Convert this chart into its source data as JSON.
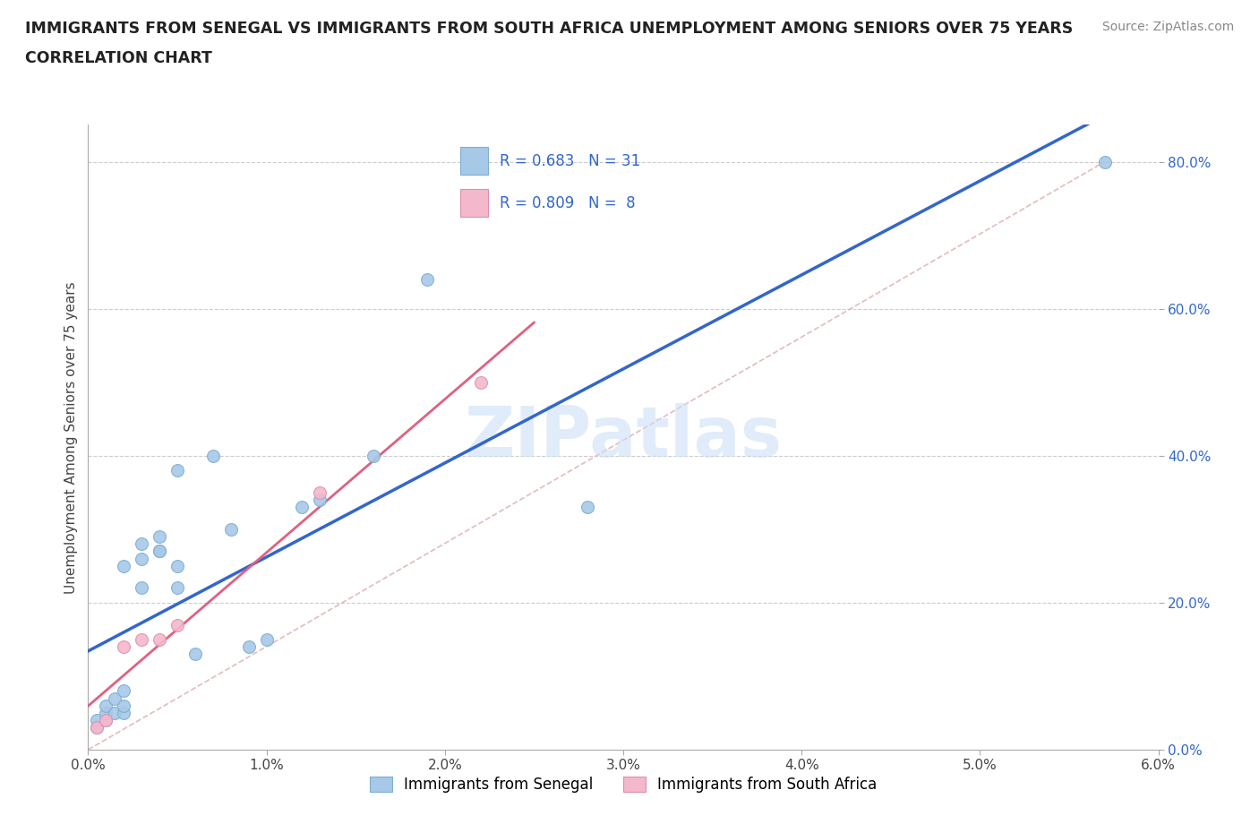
{
  "title_line1": "IMMIGRANTS FROM SENEGAL VS IMMIGRANTS FROM SOUTH AFRICA UNEMPLOYMENT AMONG SENIORS OVER 75 YEARS",
  "title_line2": "CORRELATION CHART",
  "source": "Source: ZipAtlas.com",
  "ylabel": "Unemployment Among Seniors over 75 years",
  "xlim": [
    0.0,
    0.06
  ],
  "ylim": [
    0.0,
    0.85
  ],
  "xticks": [
    0.0,
    0.01,
    0.02,
    0.03,
    0.04,
    0.05,
    0.06
  ],
  "xticklabels": [
    "0.0%",
    "1.0%",
    "2.0%",
    "3.0%",
    "4.0%",
    "5.0%",
    "6.0%"
  ],
  "yticks_right": [
    0.0,
    0.2,
    0.4,
    0.6,
    0.8
  ],
  "ytick_right_labels": [
    "0.0%",
    "20.0%",
    "40.0%",
    "60.0%",
    "80.0%"
  ],
  "R_senegal": 0.683,
  "N_senegal": 31,
  "R_south_africa": 0.809,
  "N_south_africa": 8,
  "color_senegal": "#a8c8e8",
  "color_south_africa": "#f4b8cc",
  "line_color_senegal": "#3366cc",
  "line_color_south_africa": "#e06080",
  "watermark": "ZIPatlas",
  "legend_label_senegal": "Immigrants from Senegal",
  "legend_label_south_africa": "Immigrants from South Africa",
  "senegal_x": [
    0.0005,
    0.0005,
    0.001,
    0.001,
    0.001,
    0.0015,
    0.0015,
    0.002,
    0.002,
    0.002,
    0.002,
    0.003,
    0.003,
    0.003,
    0.004,
    0.004,
    0.004,
    0.005,
    0.005,
    0.005,
    0.006,
    0.007,
    0.008,
    0.009,
    0.01,
    0.012,
    0.013,
    0.016,
    0.019,
    0.028,
    0.057
  ],
  "senegal_y": [
    0.03,
    0.04,
    0.04,
    0.05,
    0.06,
    0.05,
    0.07,
    0.05,
    0.06,
    0.08,
    0.25,
    0.22,
    0.26,
    0.28,
    0.27,
    0.27,
    0.29,
    0.22,
    0.25,
    0.38,
    0.13,
    0.4,
    0.3,
    0.14,
    0.15,
    0.33,
    0.34,
    0.4,
    0.64,
    0.33,
    0.8
  ],
  "south_africa_x": [
    0.0005,
    0.001,
    0.002,
    0.003,
    0.004,
    0.005,
    0.013,
    0.022
  ],
  "south_africa_y": [
    0.03,
    0.04,
    0.14,
    0.15,
    0.15,
    0.17,
    0.35,
    0.5
  ],
  "ref_line_x": [
    0.0,
    0.057
  ],
  "ref_line_y": [
    0.0,
    0.8
  ]
}
